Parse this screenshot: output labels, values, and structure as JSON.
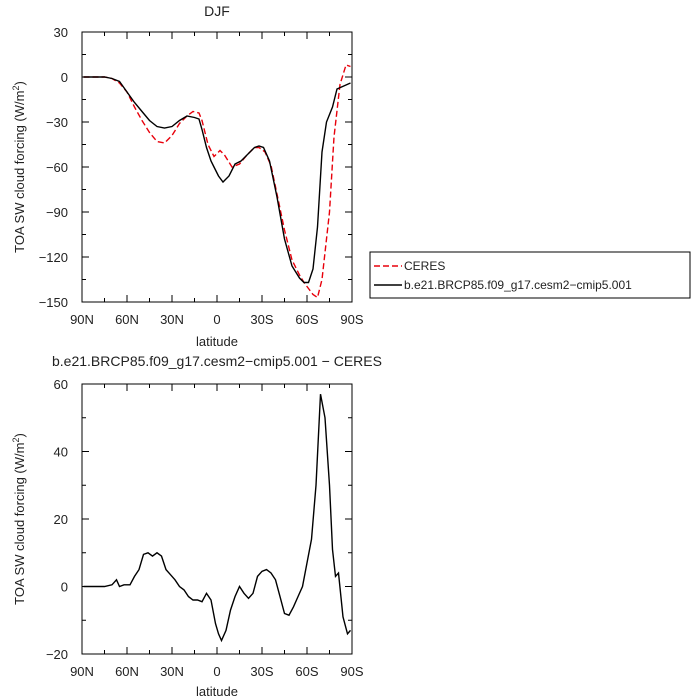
{
  "chart_data": [
    {
      "type": "line",
      "title": "DJF",
      "xlabel": "latitude",
      "ylabel": "TOA SW cloud forcing (W/m",
      "ylabel_sup": "2",
      "ylabel_tail": ")",
      "xlim": [
        90,
        -90
      ],
      "ylim": [
        -150,
        30
      ],
      "x_ticks": [
        90,
        60,
        30,
        0,
        -30,
        -60,
        -90
      ],
      "x_tick_labels": [
        "90N",
        "60N",
        "30N",
        "0",
        "30S",
        "60S",
        "90S"
      ],
      "y_ticks": [
        -150,
        -120,
        -90,
        -60,
        -30,
        0,
        30
      ],
      "y_tick_labels": [
        "−150",
        "−120",
        "−90",
        "−60",
        "−30",
        "0",
        "30"
      ],
      "legend": {
        "placement": "right",
        "entries": [
          {
            "label": "CERES",
            "color": "#e8000b",
            "style": "dashed"
          },
          {
            "label": "b.e21.BRCP85.f09_g17.cesm2−cmip5.001",
            "color": "#000000",
            "style": "solid"
          }
        ]
      },
      "series": [
        {
          "name": "CERES",
          "color": "#e8000b",
          "style": "dashed",
          "x": [
            89,
            80,
            75,
            70,
            65,
            60,
            55,
            50,
            45,
            40,
            35,
            30,
            25,
            20,
            16,
            12,
            10,
            6,
            2,
            -2,
            -5,
            -10,
            -15,
            -20,
            -25,
            -28,
            -32,
            -36,
            -40,
            -45,
            -50,
            -55,
            -58,
            -61,
            -64,
            -67,
            -70,
            -75,
            -78,
            -82,
            -86,
            -89
          ],
          "y": [
            0,
            0,
            0,
            -1,
            -4,
            -10,
            -20,
            -29,
            -37,
            -43,
            -44,
            -39,
            -31,
            -26,
            -23,
            -24,
            -29,
            -45,
            -53,
            -49,
            -52,
            -60,
            -58,
            -52,
            -47,
            -47,
            -50,
            -59,
            -78,
            -102,
            -122,
            -132,
            -137,
            -141,
            -145,
            -147,
            -135,
            -90,
            -40,
            -5,
            8,
            7
          ]
        },
        {
          "name": "b.e21.BRCP85.f09_g17.cesm2−cmip5.001",
          "color": "#000000",
          "style": "solid",
          "x": [
            89,
            80,
            75,
            70,
            65,
            60,
            55,
            50,
            45,
            40,
            35,
            30,
            25,
            20,
            15,
            12,
            10,
            7,
            4,
            2,
            -1,
            -4,
            -8,
            -12,
            -16,
            -20,
            -25,
            -28,
            -31,
            -35,
            -40,
            -45,
            -50,
            -55,
            -58,
            -61,
            -64,
            -67,
            -70,
            -73,
            -77,
            -80,
            -89
          ],
          "y": [
            0,
            0,
            0,
            -1,
            -3,
            -10,
            -17,
            -23,
            -29,
            -33,
            -34,
            -33,
            -29,
            -26,
            -27,
            -28,
            -35,
            -47,
            -56,
            -60,
            -66,
            -70,
            -66,
            -58,
            -56,
            -52,
            -47,
            -46,
            -47,
            -56,
            -80,
            -108,
            -126,
            -134,
            -137,
            -137,
            -128,
            -100,
            -50,
            -30,
            -20,
            -8,
            -4
          ]
        }
      ]
    },
    {
      "type": "line",
      "title": "b.e21.BRCP85.f09_g17.cesm2−cmip5.001 − CERES",
      "xlabel": "latitude",
      "ylabel": "TOA SW cloud forcing (W/m",
      "ylabel_sup": "2",
      "ylabel_tail": ")",
      "xlim": [
        90,
        -90
      ],
      "ylim": [
        -20,
        60
      ],
      "x_ticks": [
        90,
        60,
        30,
        0,
        -30,
        -60,
        -90
      ],
      "x_tick_labels": [
        "90N",
        "60N",
        "30N",
        "0",
        "30S",
        "60S",
        "90S"
      ],
      "y_ticks": [
        -20,
        0,
        20,
        40,
        60
      ],
      "y_tick_labels": [
        "−20",
        "0",
        "20",
        "40",
        "60"
      ],
      "series": [
        {
          "color": "#000000",
          "style": "solid",
          "x": [
            89,
            80,
            75,
            70,
            67,
            65,
            62,
            58,
            55,
            52,
            49,
            46,
            43,
            40,
            37,
            34,
            31,
            28,
            25,
            22,
            19,
            16,
            13,
            10,
            7,
            4,
            1,
            -1,
            -3,
            -6,
            -9,
            -12,
            -15,
            -18,
            -21,
            -24,
            -27,
            -30,
            -33,
            -36,
            -39,
            -42,
            -45,
            -48,
            -51,
            -54,
            -57,
            -60,
            -63,
            -66,
            -69,
            -72,
            -75,
            -77,
            -79,
            -81,
            -84,
            -87,
            -89
          ],
          "y": [
            0,
            0,
            0,
            0.5,
            2,
            0,
            0.5,
            0.5,
            3,
            5,
            9.5,
            10,
            9,
            10,
            9,
            5,
            3.5,
            2,
            0,
            -1,
            -3,
            -4,
            -4,
            -4.5,
            -2,
            -4,
            -11,
            -14,
            -16,
            -13,
            -7,
            -3,
            0,
            -2,
            -3.5,
            -2,
            3,
            4.5,
            5,
            4,
            2,
            -3,
            -8,
            -8.5,
            -6,
            -3,
            0,
            7,
            14,
            30,
            57,
            50,
            30,
            11,
            3,
            4,
            -9,
            -14,
            -13
          ]
        }
      ]
    }
  ]
}
